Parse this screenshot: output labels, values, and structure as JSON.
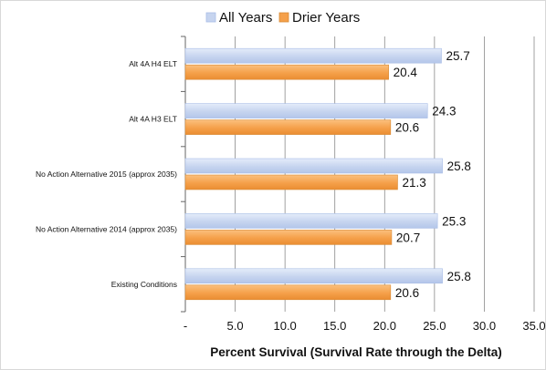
{
  "chart_data": {
    "type": "bar",
    "orientation": "horizontal",
    "categories": [
      "Alt 4A H4 ELT",
      "Alt 4A H3 ELT",
      "No Action Alternative 2015 (approx 2035)",
      "No Action Alternative 2014 (approx 2035)",
      "Existing Conditions"
    ],
    "series": [
      {
        "name": "All Years",
        "values": [
          25.7,
          24.3,
          25.8,
          25.3,
          25.8
        ],
        "color": "#c6d4ef"
      },
      {
        "name": "Drier Years",
        "values": [
          20.4,
          20.6,
          21.3,
          20.7,
          20.6
        ],
        "color": "#f5a04a"
      }
    ],
    "xlabel": "Percent Survival (Survival Rate through the Delta)",
    "ylabel": "",
    "title": "",
    "xlim": [
      0,
      35
    ],
    "xticks": [
      "-",
      "5.0",
      "10.0",
      "15.0",
      "20.0",
      "25.0",
      "30.0",
      "35.0"
    ],
    "xtick_values": [
      0,
      5,
      10,
      15,
      20,
      25,
      30,
      35
    ],
    "grid": "vertical",
    "legend": "top"
  }
}
